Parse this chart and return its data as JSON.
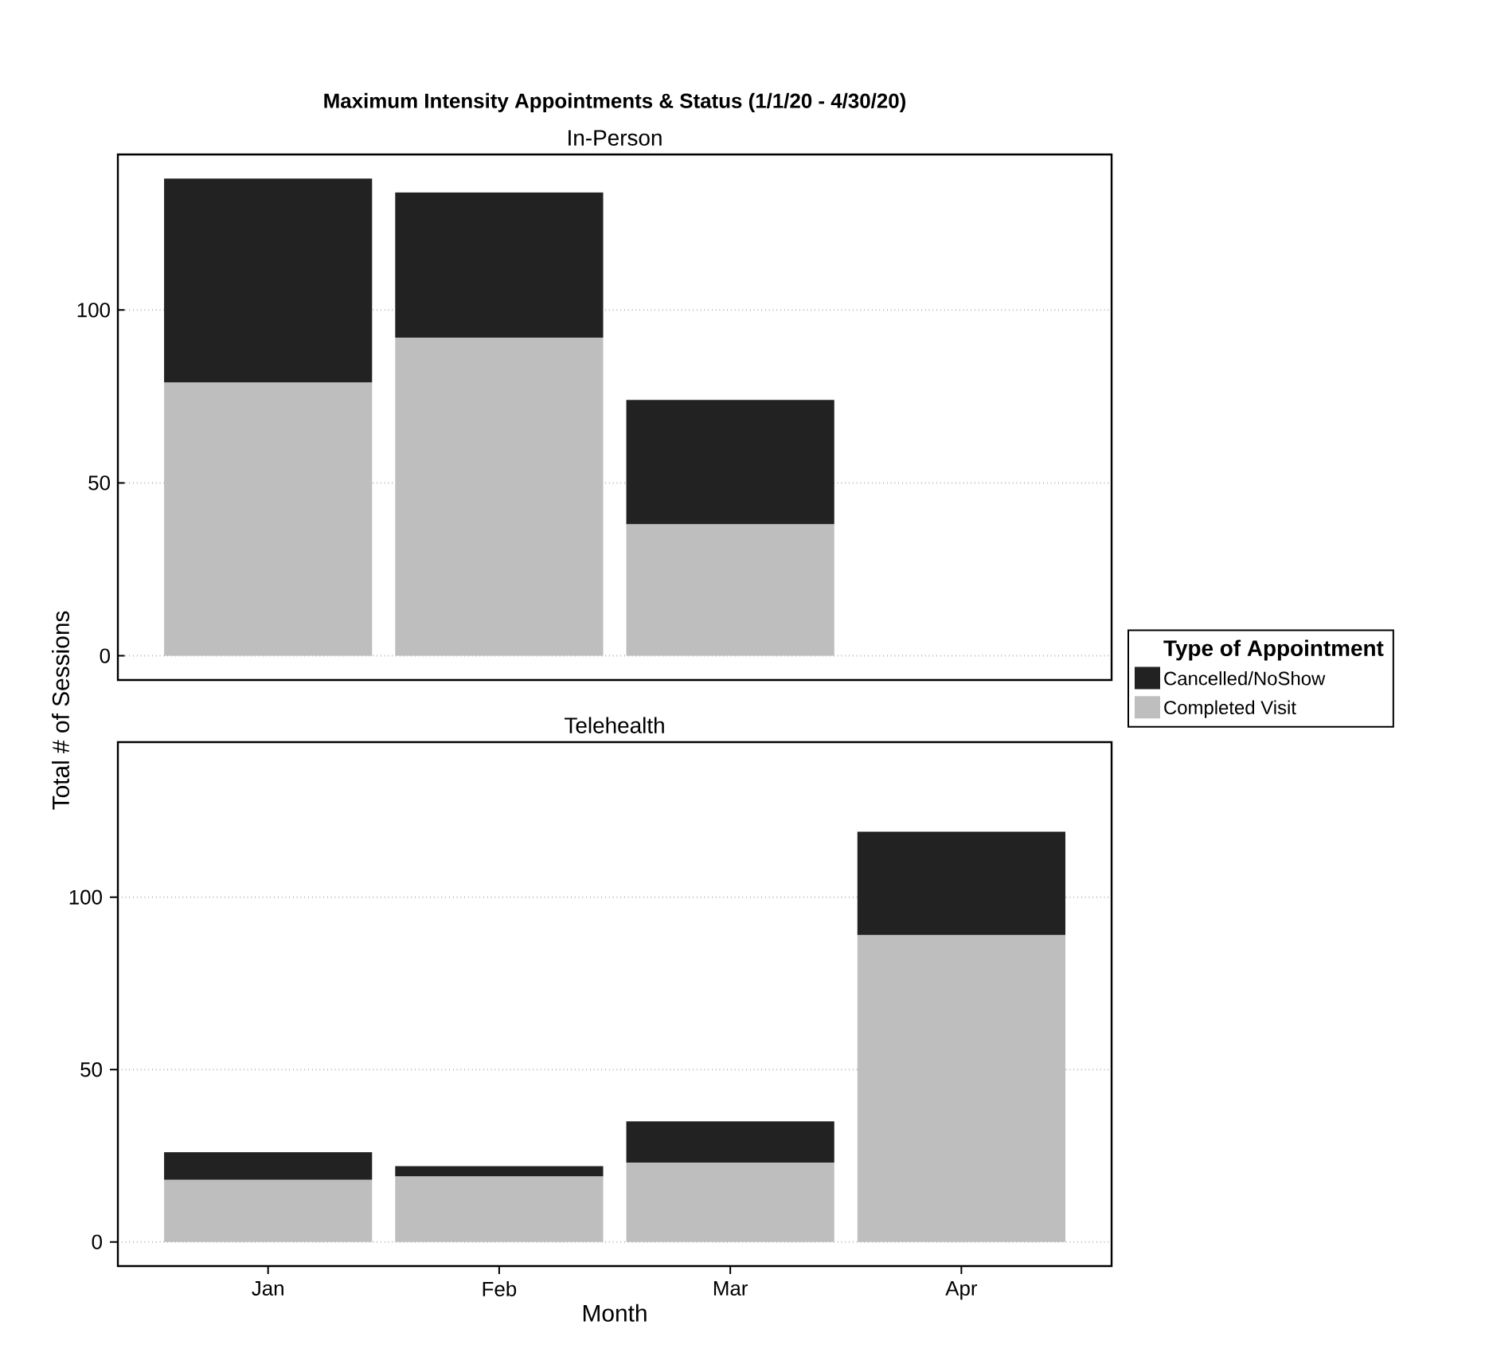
{
  "chart_data": [
    {
      "type": "bar",
      "title": "Maximum Intensity Appointments & Status (1/1/20 - 4/30/20)",
      "subtitle": "In-Person",
      "stacked": true,
      "categories": [
        null,
        null,
        null,
        null
      ],
      "tick_labels": "y",
      "ylim": [
        -7,
        145
      ],
      "yticks": [
        0,
        50,
        100
      ],
      "grid": "y",
      "series": [
        {
          "color": "#bebebe",
          "values": [
            79,
            92,
            38,
            null
          ]
        },
        {
          "color": "#222222",
          "values": [
            59,
            42,
            36,
            null
          ]
        }
      ]
    },
    {
      "type": "bar",
      "title": "Telehealth",
      "xlabel": "Month",
      "ylabel": "Total # of Sessions",
      "legend_title": "Type of Appointment",
      "legend": "right",
      "stacked": true,
      "categories": [
        "Jan",
        "Feb",
        "Mar",
        "Apr"
      ],
      "ylim": [
        -7,
        145
      ],
      "yticks": [
        0,
        50,
        100
      ],
      "grid": "y",
      "series": [
        {
          "name": "Completed Visit",
          "color": "#bebebe",
          "values": [
            18,
            19,
            23,
            89
          ]
        },
        {
          "name": "Cancelled/NoShow",
          "color": "#222222",
          "values": [
            8,
            3,
            12,
            30
          ]
        }
      ]
    }
  ]
}
